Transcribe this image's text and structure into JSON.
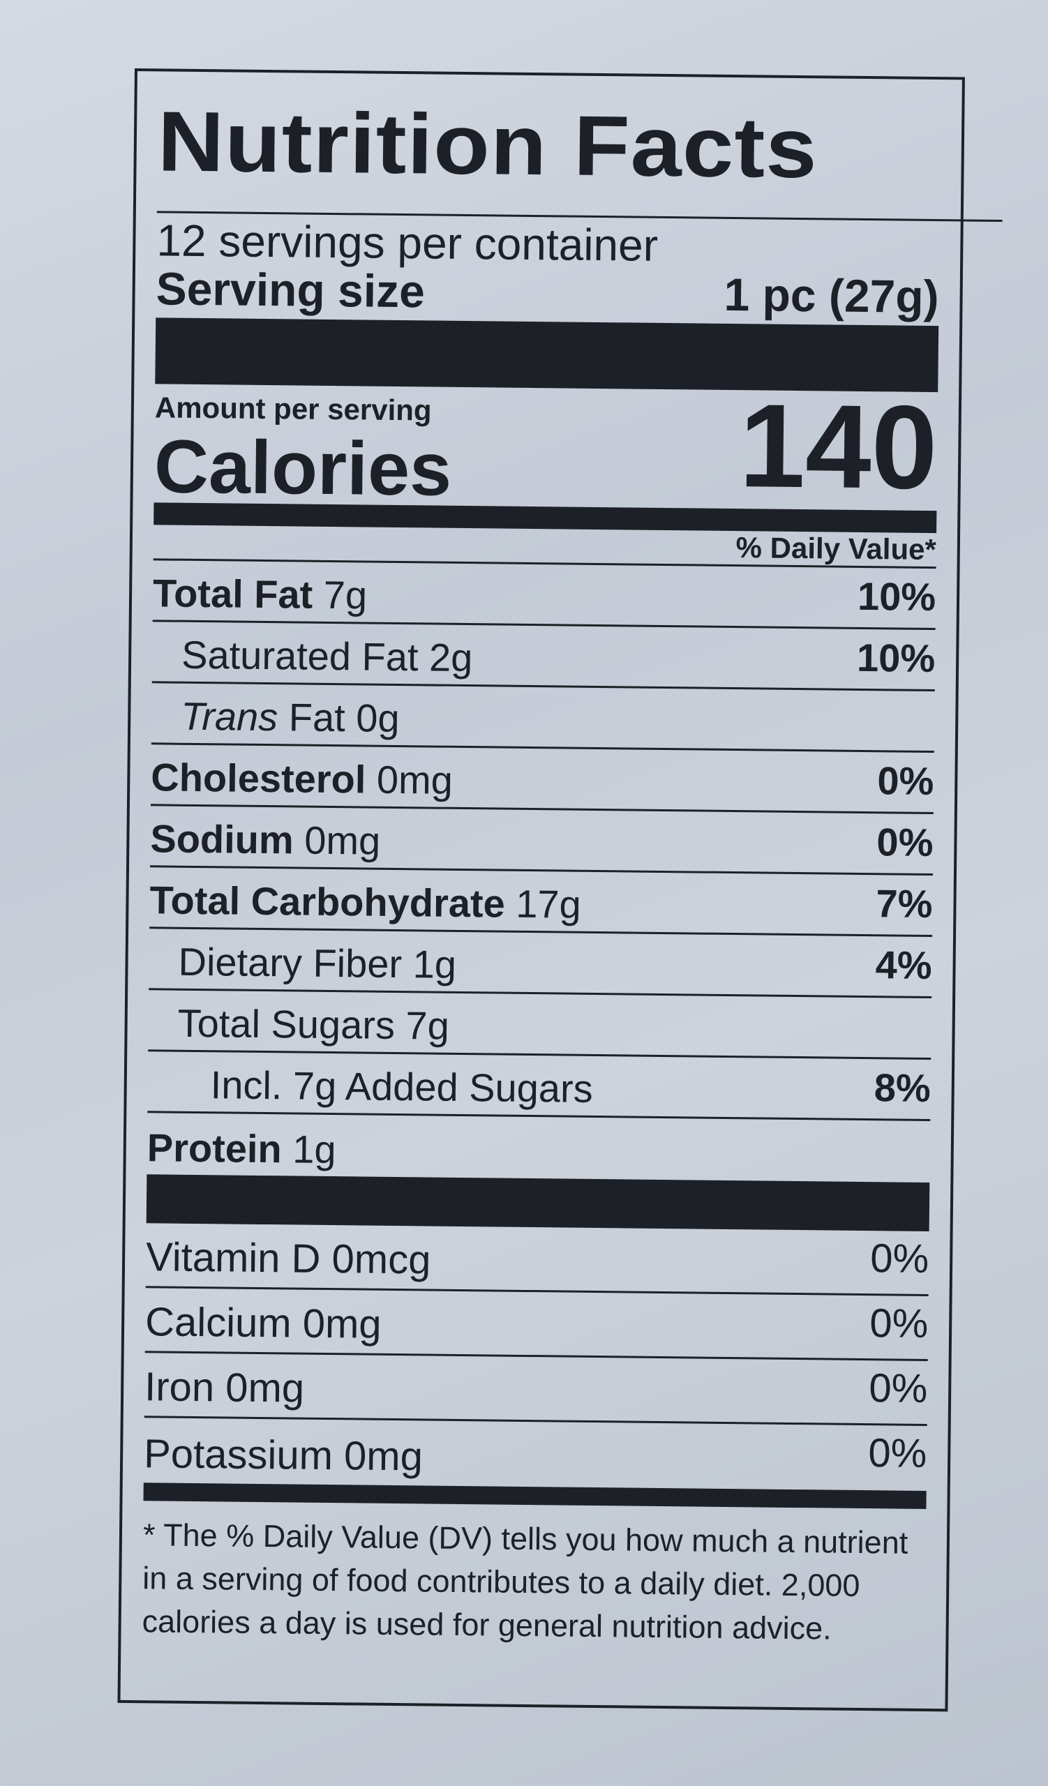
{
  "title": "Nutrition Facts",
  "servings_per_container": "12 servings per container",
  "serving_size_label": "Serving size",
  "serving_size_value": "1 pc (27g)",
  "amount_per_serving": "Amount per serving",
  "calories_label": "Calories",
  "calories_value": "140",
  "daily_value_header": "% Daily Value*",
  "nutrients": [
    {
      "label": "Total Fat",
      "amount": "7g",
      "dv": "10%"
    },
    {
      "label": "Saturated Fat",
      "amount": "2g",
      "dv": "10%"
    },
    {
      "label_italic": "Trans",
      "label": "Fat",
      "amount": "0g",
      "dv": ""
    },
    {
      "label": "Cholesterol",
      "amount": "0mg",
      "dv": "0%"
    },
    {
      "label": "Sodium",
      "amount": "0mg",
      "dv": "0%"
    },
    {
      "label": "Total Carbohydrate",
      "amount": "17g",
      "dv": "7%"
    },
    {
      "label": "Dietary Fiber",
      "amount": "1g",
      "dv": "4%"
    },
    {
      "label": "Total Sugars",
      "amount": "7g",
      "dv": ""
    },
    {
      "label": "Incl. 7g Added Sugars",
      "amount": "",
      "dv": "8%"
    },
    {
      "label": "Protein",
      "amount": "1g",
      "dv": ""
    }
  ],
  "vitamins": [
    {
      "label": "Vitamin D 0mcg",
      "dv": "0%"
    },
    {
      "label": "Calcium 0mg",
      "dv": "0%"
    },
    {
      "label": "Iron 0mg",
      "dv": "0%"
    },
    {
      "label": "Potassium 0mg",
      "dv": "0%"
    }
  ],
  "footnote": "* The % Daily Value (DV) tells you how much a nutrient in a serving of food contributes to a daily diet. 2,000 calories a day is used for general nutrition advice."
}
